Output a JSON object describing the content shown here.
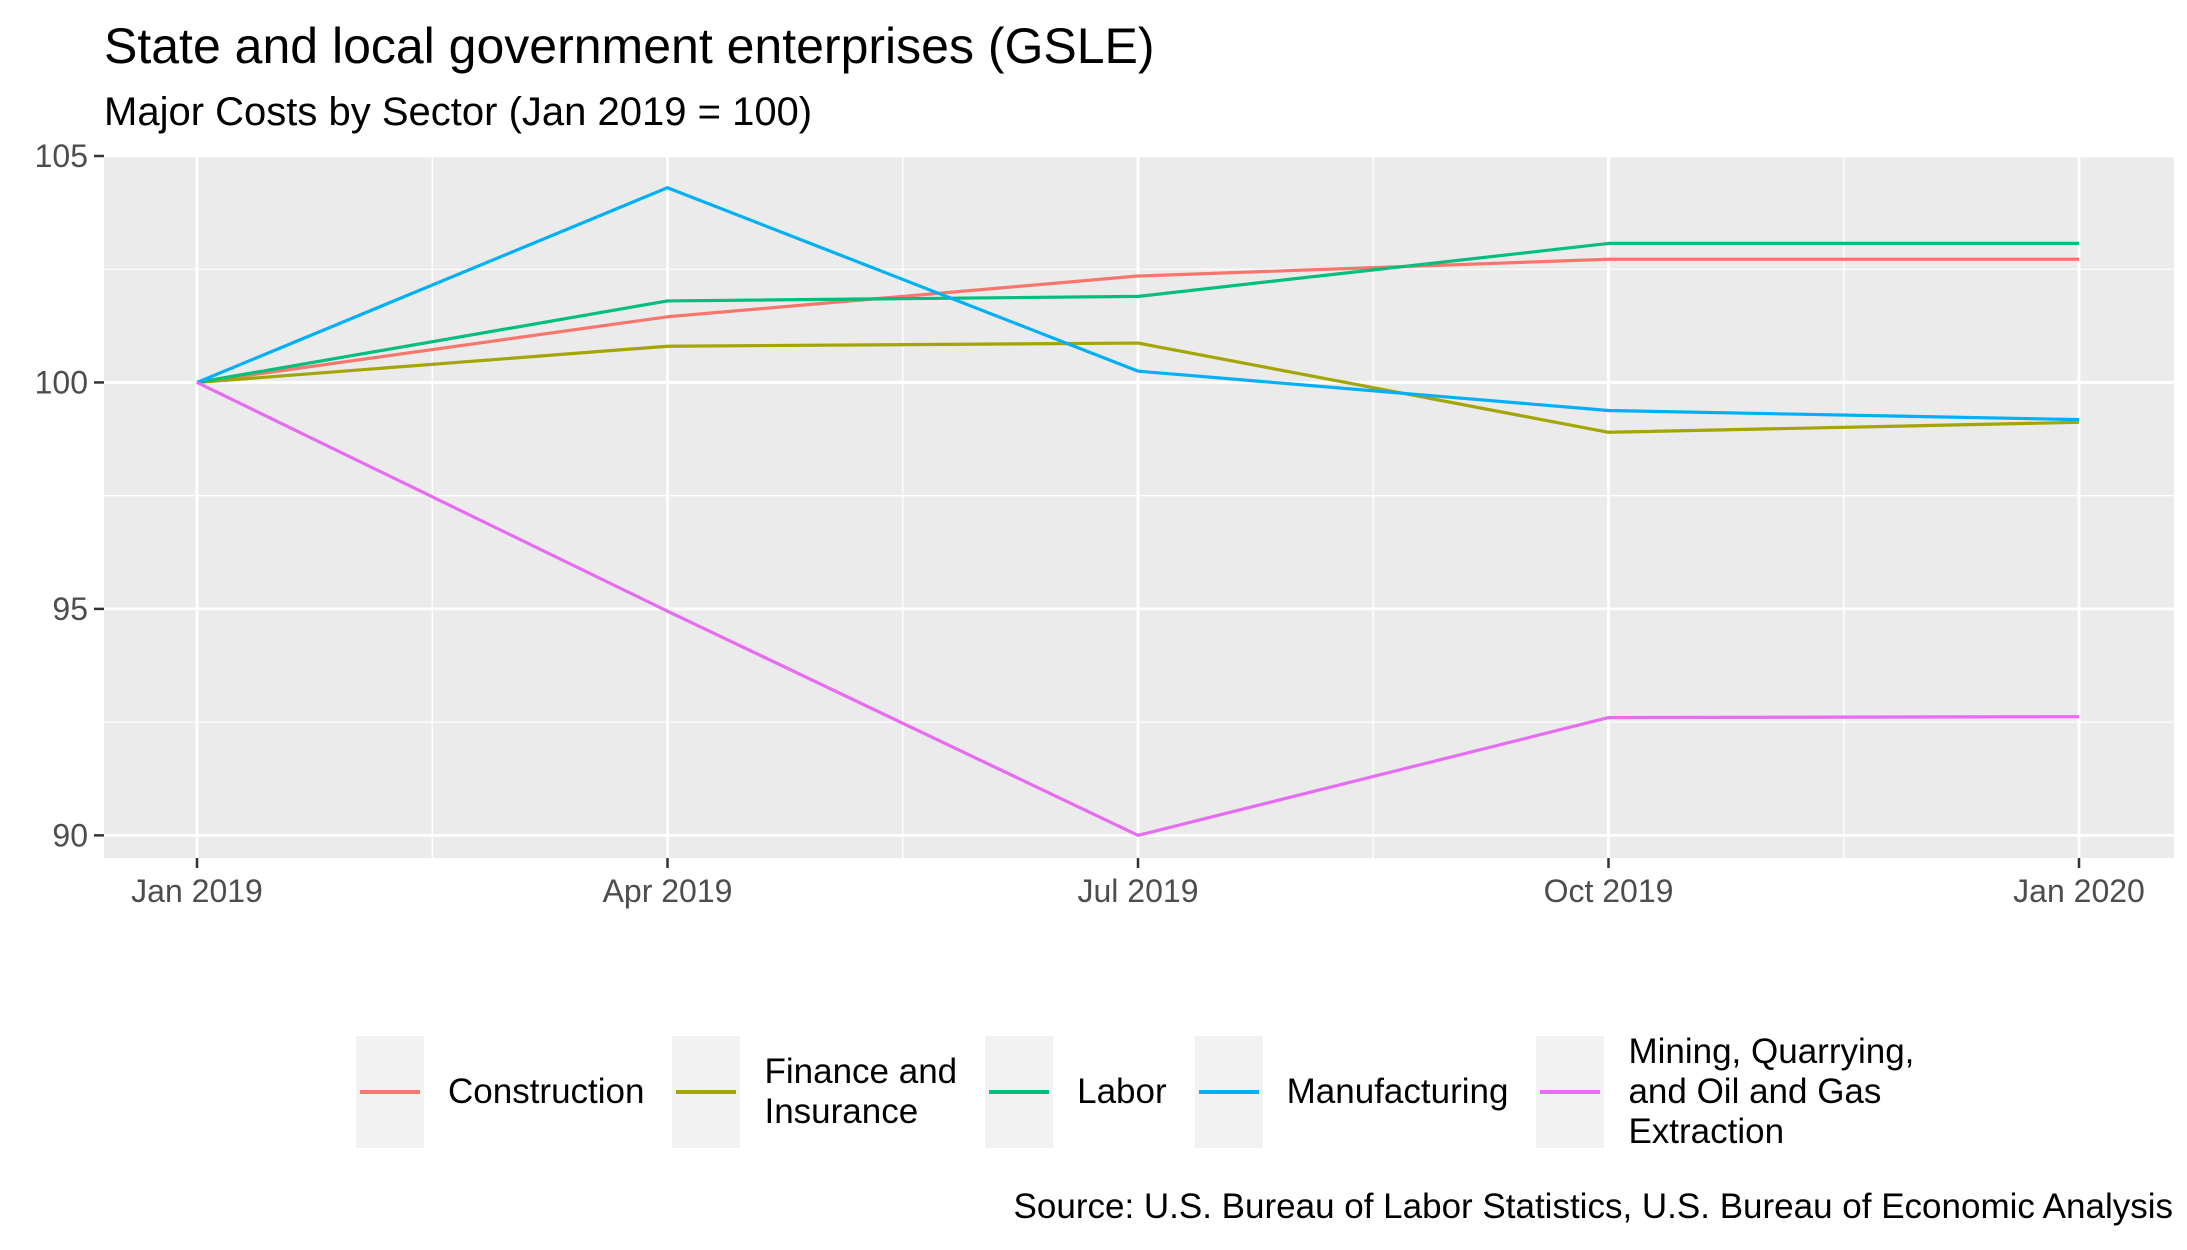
{
  "chart_data": {
    "type": "line",
    "title": "State and local government enterprises (GSLE)",
    "subtitle": "Major Costs by Sector (Jan 2019 = 100)",
    "xlabel": "",
    "ylabel": "",
    "x": [
      "Jan 2019",
      "Apr 2019",
      "Jul 2019",
      "Oct 2019",
      "Jan 2020"
    ],
    "ylim": [
      89.5,
      105
    ],
    "yticks": [
      90,
      95,
      100,
      105
    ],
    "grid": true,
    "legend_position": "bottom",
    "series": [
      {
        "name": "Construction",
        "color": "#F8766D",
        "values": [
          100,
          101.45,
          102.35,
          102.72,
          102.72
        ]
      },
      {
        "name": "Finance and\nInsurance",
        "color": "#A3A500",
        "values": [
          100,
          100.8,
          100.87,
          98.9,
          99.12
        ]
      },
      {
        "name": "Labor",
        "color": "#00BF7D",
        "values": [
          100,
          101.8,
          101.9,
          103.07,
          103.07
        ]
      },
      {
        "name": "Manufacturing",
        "color": "#00B0F6",
        "values": [
          100,
          104.3,
          100.25,
          99.38,
          99.18
        ]
      },
      {
        "name": "Mining, Quarrying,\nand Oil and Gas\nExtraction",
        "color": "#E76BF3",
        "values": [
          100,
          94.95,
          90.0,
          92.6,
          92.62
        ]
      }
    ],
    "source": "Source: U.S. Bureau of Labor Statistics, U.S. Bureau of Economic Analysis"
  }
}
